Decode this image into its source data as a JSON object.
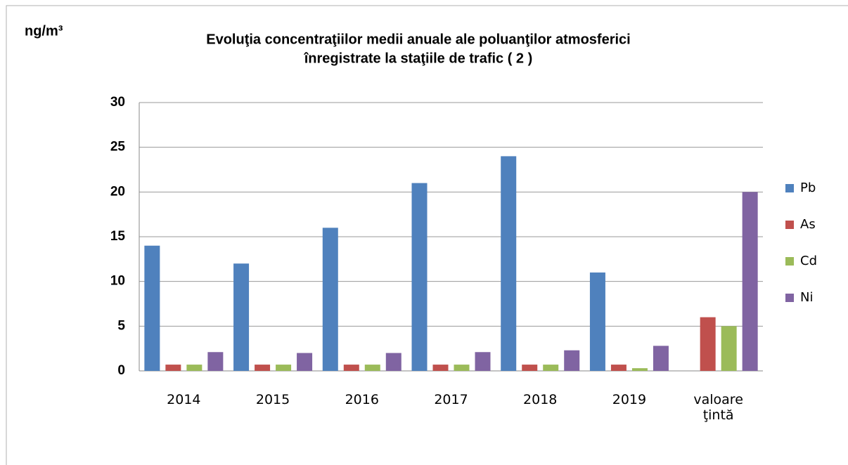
{
  "chart_data": {
    "type": "bar",
    "title": [
      "Evoluţia concentraţiilor medii anuale ale poluanţilor atmosferici",
      "înregistrate la staţiile de trafic ( 2 )"
    ],
    "y_label": "ng/m³",
    "categories": [
      "2014",
      "2015",
      "2016",
      "2017",
      "2018",
      "2019",
      "valoare ţintă"
    ],
    "series": [
      {
        "name": "Pb",
        "color": "#4f81bd",
        "values": [
          14,
          12,
          16,
          21,
          24,
          11,
          null
        ]
      },
      {
        "name": "As",
        "color": "#c0504d",
        "values": [
          0.7,
          0.7,
          0.7,
          0.7,
          0.7,
          0.7,
          6
        ]
      },
      {
        "name": "Cd",
        "color": "#9bbb59",
        "values": [
          0.7,
          0.7,
          0.7,
          0.7,
          0.7,
          0.3,
          5
        ]
      },
      {
        "name": "Ni",
        "color": "#8064a2",
        "values": [
          2.1,
          2,
          2,
          2.1,
          2.3,
          2.8,
          20
        ]
      }
    ],
    "ylim": [
      0,
      30
    ],
    "yticks": [
      0,
      5,
      10,
      15,
      20,
      25,
      30
    ],
    "grid": true,
    "legend": "right"
  }
}
